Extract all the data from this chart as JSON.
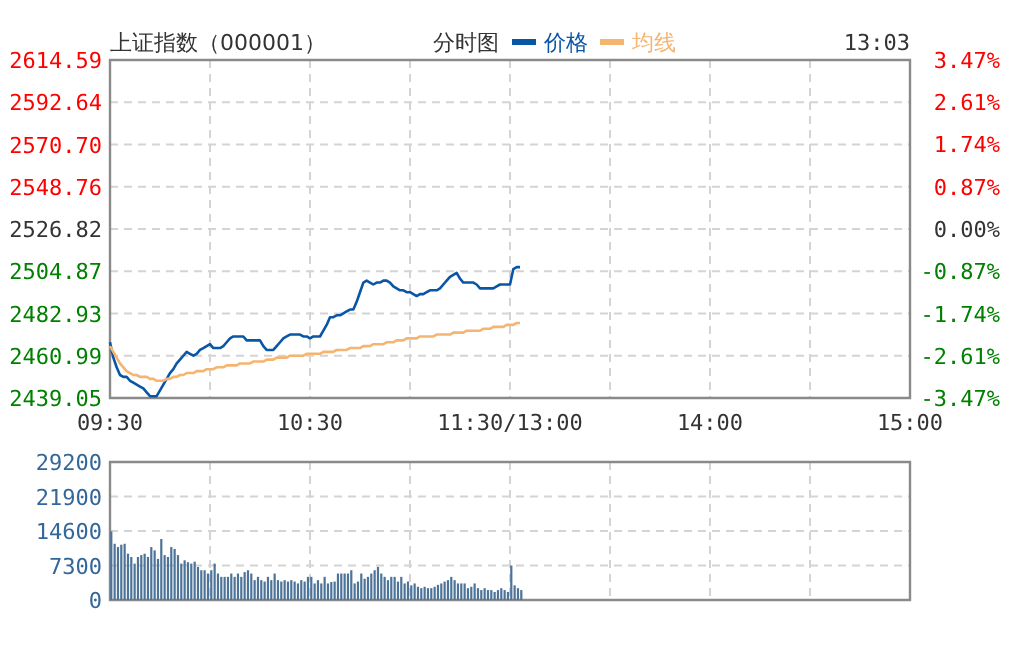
{
  "chart_data": [
    {
      "type": "line",
      "title": "上证指数（000001）",
      "subtitle": "分时图",
      "annotations": [
        "13:03"
      ],
      "legend": "top",
      "grid": true,
      "line_style": "solid",
      "marker": "none",
      "categories": [
        "09:30",
        null,
        null,
        null,
        null,
        null,
        null,
        null,
        null,
        null,
        null,
        null,
        null,
        null,
        null,
        null,
        null,
        null,
        null,
        null,
        null,
        null,
        null,
        null,
        null,
        null,
        null,
        null,
        null,
        null,
        null,
        null,
        null,
        null,
        null,
        null,
        null,
        null,
        null,
        null,
        null,
        null,
        null,
        null,
        null,
        null,
        null,
        null,
        null,
        null,
        null,
        null,
        null,
        null,
        null,
        null,
        null,
        null,
        null,
        null,
        "10:30",
        null,
        null,
        null,
        null,
        null,
        null,
        null,
        null,
        null,
        null,
        null,
        null,
        null,
        null,
        null,
        null,
        null,
        null,
        null,
        null,
        null,
        null,
        null,
        null,
        null,
        null,
        null,
        null,
        null,
        null,
        null,
        null,
        null,
        null,
        null,
        null,
        null,
        null,
        null,
        null,
        null,
        null,
        null,
        null,
        null,
        null,
        null,
        null,
        null,
        null,
        null,
        null,
        null,
        null,
        null,
        null,
        null,
        null,
        null,
        "11:30/13:00",
        null,
        null,
        null,
        null,
        null,
        null,
        null,
        null,
        null,
        null,
        null,
        null,
        null,
        null,
        null,
        null,
        null,
        null,
        null,
        null,
        null,
        null,
        null,
        null,
        null,
        null,
        null,
        null,
        null,
        null,
        null,
        null,
        null,
        null,
        null,
        null,
        null,
        null,
        null,
        null,
        null,
        null,
        null,
        null,
        null,
        null,
        null,
        null,
        null,
        null,
        null,
        null,
        null,
        null,
        null,
        null,
        null,
        null,
        null,
        "14:00",
        null,
        null,
        null,
        null,
        null,
        null,
        null,
        null,
        null,
        null,
        null,
        null,
        null,
        null,
        null,
        null,
        null,
        null,
        null,
        null,
        null,
        null,
        null,
        null,
        null,
        null,
        null,
        null,
        null,
        null,
        null,
        null,
        null,
        null,
        null,
        null,
        null,
        null,
        null,
        null,
        null,
        null,
        null,
        null,
        null,
        null,
        null,
        null,
        null,
        null,
        null,
        null,
        null,
        null,
        null,
        null,
        null,
        null,
        null,
        "15:00"
      ],
      "ylim": [
        2439.05,
        2614.59
      ],
      "yticks": [
        {
          "value": 2439.05,
          "label": "2439.05"
        },
        {
          "value": 2460.99,
          "label": "2460.99"
        },
        {
          "value": 2482.93,
          "label": "2482.93"
        },
        {
          "value": 2504.87,
          "label": "2504.87"
        },
        {
          "value": 2526.82,
          "label": "2526.82"
        },
        {
          "value": 2548.76,
          "label": "2548.76"
        },
        {
          "value": 2570.7,
          "label": "2570.70"
        },
        {
          "value": 2592.64,
          "label": "2592.64"
        },
        {
          "value": 2614.59,
          "label": "2614.59"
        }
      ],
      "y2lim": [
        -3.47,
        3.47
      ],
      "y2ticks": [
        {
          "value": -3.47,
          "label": "-3.47%"
        },
        {
          "value": -2.61,
          "label": "-2.61%"
        },
        {
          "value": -1.74,
          "label": "-1.74%"
        },
        {
          "value": -0.87,
          "label": "-0.87%"
        },
        {
          "value": 0,
          "label": "0.00%"
        },
        {
          "value": 0.87,
          "label": "0.87%"
        },
        {
          "value": 1.74,
          "label": "1.74%"
        },
        {
          "value": 2.61,
          "label": "2.61%"
        },
        {
          "value": 3.47,
          "label": "3.47%"
        }
      ],
      "series": [
        {
          "name": "价格",
          "color": "#0a56a6",
          "values": [
            2468,
            2460,
            2455,
            2451,
            2450,
            2450,
            2448,
            2447,
            2446,
            2445,
            2444,
            2442,
            2440,
            2440,
            2440,
            2443,
            2446,
            2449,
            2452,
            2454,
            2457,
            2459,
            2461,
            2463,
            2462,
            2461,
            2462,
            2464,
            2465,
            2466,
            2467,
            2465,
            2465,
            2465,
            2466,
            2468,
            2470,
            2471,
            2471,
            2471,
            2471,
            2469,
            2469,
            2469,
            2469,
            2469,
            2466,
            2464,
            2464,
            2464,
            2466,
            2468,
            2470,
            2471,
            2472,
            2472,
            2472,
            2472,
            2471,
            2471,
            2470,
            2471,
            2471,
            2471,
            2474,
            2477,
            2481,
            2481,
            2482,
            2482,
            2483,
            2484,
            2485,
            2485,
            2489,
            2494,
            2499,
            2500,
            2499,
            2498,
            2499,
            2499,
            2500,
            2500,
            2499,
            2497,
            2496,
            2495,
            2495,
            2494,
            2494,
            2493,
            2492,
            2493,
            2493,
            2494,
            2495,
            2495,
            2495,
            2496,
            2498,
            2500,
            2502,
            2503,
            2504,
            2501,
            2499,
            2499,
            2499,
            2499,
            2498,
            2496,
            2496,
            2496,
            2496,
            2496,
            2497,
            2498,
            2498,
            2498,
            2498,
            2506,
            2507,
            2507,
            null,
            null,
            null,
            null,
            null,
            null,
            null,
            null,
            null,
            null,
            null,
            null,
            null,
            null,
            null,
            null,
            null,
            null,
            null,
            null,
            null,
            null,
            null,
            null,
            null,
            null,
            null,
            null,
            null,
            null,
            null,
            null,
            null,
            null,
            null,
            null,
            null,
            null,
            null,
            null,
            null,
            null,
            null,
            null,
            null,
            null,
            null,
            null,
            null,
            null,
            null,
            null,
            null,
            null,
            null,
            null,
            null,
            null,
            null,
            null,
            null,
            null,
            null,
            null,
            null,
            null,
            null,
            null,
            null,
            null,
            null,
            null,
            null,
            null,
            null,
            null,
            null,
            null,
            null,
            null,
            null,
            null,
            null,
            null,
            null,
            null,
            null,
            null,
            null,
            null,
            null,
            null,
            null,
            null,
            null,
            null,
            null,
            null,
            null,
            null,
            null,
            null,
            null,
            null,
            null,
            null,
            null,
            null,
            null,
            null,
            null,
            null,
            null,
            null,
            null,
            null,
            null
          ]
        },
        {
          "name": "均线",
          "color": "#f5b470",
          "values": [
            2466,
            2463,
            2460,
            2457,
            2455,
            2453,
            2452,
            2451,
            2451,
            2450,
            2450,
            2450,
            2449,
            2449,
            2448,
            2448,
            2448,
            2449,
            2449,
            2450,
            2450,
            2451,
            2451,
            2452,
            2452,
            2452,
            2453,
            2453,
            2453,
            2454,
            2454,
            2454,
            2455,
            2455,
            2455,
            2456,
            2456,
            2456,
            2456,
            2457,
            2457,
            2457,
            2457,
            2458,
            2458,
            2458,
            2458,
            2459,
            2459,
            2459,
            2460,
            2460,
            2460,
            2460,
            2461,
            2461,
            2461,
            2461,
            2461,
            2462,
            2462,
            2462,
            2462,
            2462,
            2463,
            2463,
            2463,
            2463,
            2464,
            2464,
            2464,
            2464,
            2465,
            2465,
            2465,
            2465,
            2466,
            2466,
            2466,
            2467,
            2467,
            2467,
            2467,
            2468,
            2468,
            2468,
            2469,
            2469,
            2469,
            2470,
            2470,
            2470,
            2470,
            2471,
            2471,
            2471,
            2471,
            2471,
            2472,
            2472,
            2472,
            2472,
            2472,
            2473,
            2473,
            2473,
            2473,
            2474,
            2474,
            2474,
            2474,
            2474,
            2475,
            2475,
            2475,
            2476,
            2476,
            2476,
            2476,
            2477,
            2477,
            2477,
            2478,
            2478,
            null,
            null,
            null,
            null,
            null,
            null,
            null,
            null,
            null,
            null,
            null,
            null,
            null,
            null,
            null,
            null,
            null,
            null,
            null,
            null,
            null,
            null,
            null,
            null,
            null,
            null,
            null,
            null,
            null,
            null,
            null,
            null,
            null,
            null,
            null,
            null,
            null,
            null,
            null,
            null,
            null,
            null,
            null,
            null,
            null,
            null,
            null,
            null,
            null,
            null,
            null,
            null,
            null,
            null,
            null,
            null,
            null,
            null,
            null,
            null,
            null,
            null,
            null,
            null,
            null,
            null,
            null,
            null,
            null,
            null,
            null,
            null,
            null,
            null,
            null,
            null,
            null,
            null,
            null,
            null,
            null,
            null,
            null,
            null,
            null,
            null,
            null,
            null,
            null,
            null,
            null,
            null,
            null,
            null,
            null,
            null,
            null,
            null,
            null,
            null,
            null,
            null,
            null,
            null,
            null,
            null,
            null,
            null,
            null,
            null,
            null,
            null,
            null,
            null,
            null,
            null,
            null
          ]
        }
      ]
    },
    {
      "type": "bar",
      "grid": true,
      "tick_labels": "y",
      "color": "#4d7399",
      "categories": [
        null,
        null,
        null,
        null,
        null,
        null,
        null,
        null,
        null,
        null,
        null,
        null,
        null,
        null,
        null,
        null,
        null,
        null,
        null,
        null,
        null,
        null,
        null,
        null,
        null,
        null,
        null,
        null,
        null,
        null,
        null,
        null,
        null,
        null,
        null,
        null,
        null,
        null,
        null,
        null,
        null,
        null,
        null,
        null,
        null,
        null,
        null,
        null,
        null,
        null,
        null,
        null,
        null,
        null,
        null,
        null,
        null,
        null,
        null,
        null,
        null,
        null,
        null,
        null,
        null,
        null,
        null,
        null,
        null,
        null,
        null,
        null,
        null,
        null,
        null,
        null,
        null,
        null,
        null,
        null,
        null,
        null,
        null,
        null,
        null,
        null,
        null,
        null,
        null,
        null,
        null,
        null,
        null,
        null,
        null,
        null,
        null,
        null,
        null,
        null,
        null,
        null,
        null,
        null,
        null,
        null,
        null,
        null,
        null,
        null,
        null,
        null,
        null,
        null,
        null,
        null,
        null,
        null,
        null,
        null,
        null,
        null,
        null,
        null,
        null,
        null,
        null,
        null,
        null,
        null,
        null,
        null,
        null,
        null,
        null,
        null,
        null,
        null,
        null,
        null,
        null,
        null,
        null,
        null,
        null,
        null,
        null,
        null,
        null,
        null,
        null,
        null,
        null,
        null,
        null,
        null,
        null,
        null,
        null,
        null,
        null,
        null,
        null,
        null,
        null,
        null,
        null,
        null,
        null,
        null,
        null,
        null,
        null,
        null,
        null,
        null,
        null,
        null,
        null,
        null,
        null,
        null,
        null,
        null,
        null,
        null,
        null,
        null,
        null,
        null,
        null,
        null,
        null,
        null,
        null,
        null,
        null,
        null,
        null,
        null,
        null,
        null,
        null,
        null,
        null,
        null,
        null,
        null,
        null,
        null,
        null,
        null,
        null,
        null,
        null,
        null,
        null,
        null,
        null,
        null,
        null,
        null,
        null,
        null,
        null,
        null,
        null,
        null,
        null,
        null,
        null,
        null,
        null,
        null,
        null,
        null,
        null,
        null,
        null,
        null,
        null
      ],
      "ylim": [
        0,
        29200
      ],
      "yticks": [
        0,
        7300,
        14600,
        21900,
        29200
      ],
      "values": [
        14500,
        11900,
        11200,
        11700,
        11900,
        9800,
        9100,
        7700,
        9100,
        9500,
        9800,
        9100,
        11200,
        10500,
        8700,
        12900,
        9500,
        9100,
        11200,
        10800,
        9500,
        7700,
        8400,
        8000,
        7700,
        8100,
        7000,
        6300,
        6300,
        5600,
        6300,
        7700,
        5600,
        4900,
        4900,
        4900,
        5600,
        4900,
        5600,
        4900,
        5900,
        6300,
        5600,
        4200,
        4900,
        4200,
        3900,
        4900,
        4200,
        5600,
        4200,
        3900,
        4200,
        3900,
        4200,
        3900,
        3500,
        4200,
        3900,
        4900,
        4900,
        3500,
        4200,
        3500,
        4900,
        3500,
        3800,
        3900,
        5600,
        5600,
        5600,
        5600,
        6300,
        3500,
        3900,
        5600,
        4500,
        4900,
        5600,
        6300,
        7000,
        5600,
        4900,
        4200,
        4900,
        4900,
        3900,
        4900,
        3500,
        3900,
        3100,
        3500,
        2800,
        2500,
        2800,
        2500,
        2500,
        2800,
        3200,
        3500,
        3900,
        4200,
        4900,
        4200,
        3500,
        3500,
        3500,
        2500,
        2800,
        3500,
        2500,
        2100,
        2500,
        2100,
        2100,
        1700,
        2100,
        2500,
        2100,
        1700,
        7300,
        3100,
        2500,
        2100,
        null,
        null,
        null,
        null,
        null,
        null,
        null,
        null,
        null,
        null,
        null,
        null,
        null,
        null,
        null,
        null,
        null,
        null,
        null,
        null,
        null,
        null,
        null,
        null,
        null,
        null,
        null,
        null,
        null,
        null,
        null,
        null,
        null,
        null,
        null,
        null,
        null,
        null,
        null,
        null,
        null,
        null,
        null,
        null,
        null,
        null,
        null,
        null,
        null,
        null,
        null,
        null,
        null,
        null,
        null,
        null,
        null,
        null,
        null,
        null,
        null,
        null,
        null,
        null,
        null,
        null,
        null,
        null,
        null,
        null,
        null,
        null,
        null,
        null,
        null,
        null,
        null,
        null,
        null,
        null,
        null,
        null,
        null,
        null,
        null,
        null,
        null,
        null,
        null,
        null,
        null,
        null,
        null,
        null,
        null,
        null,
        null,
        null,
        null,
        null,
        null,
        null,
        null,
        null,
        null,
        null,
        null,
        null,
        null,
        null,
        null,
        null,
        null,
        null,
        null,
        null,
        null
      ]
    }
  ]
}
